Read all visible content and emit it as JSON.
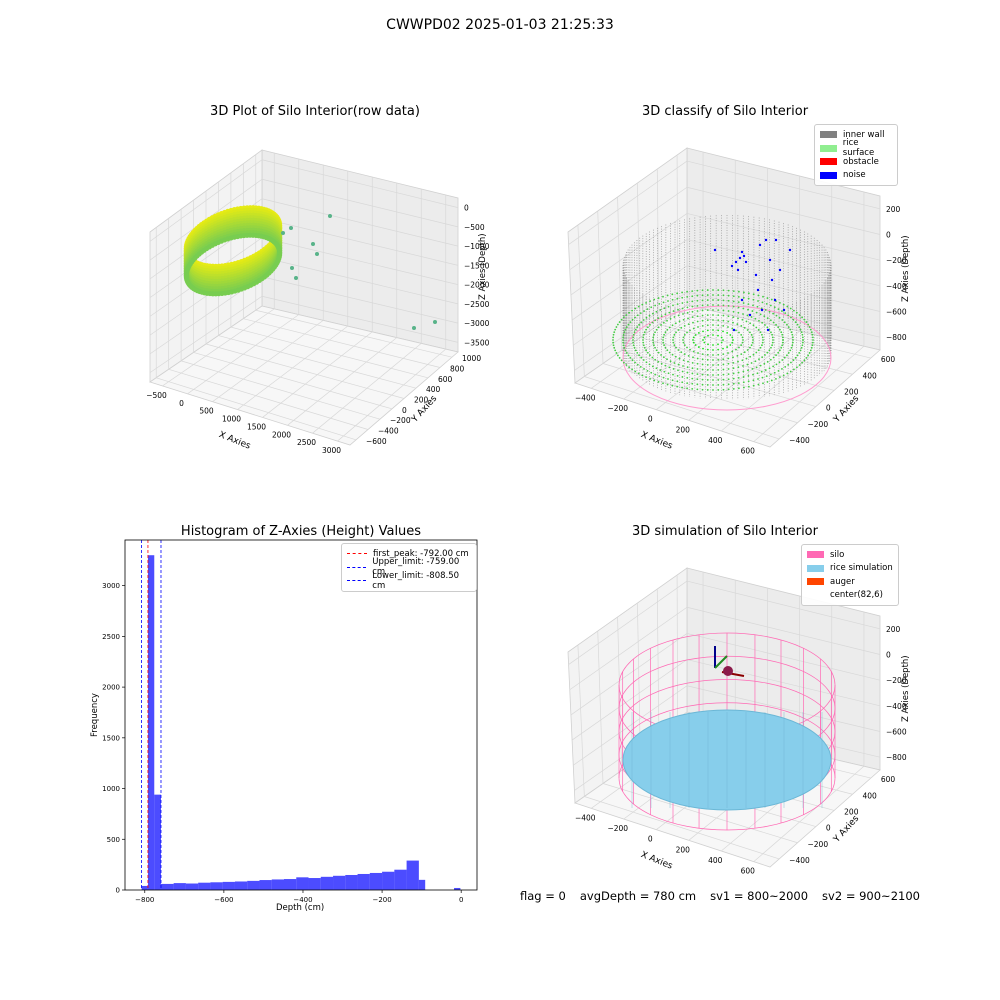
{
  "figure": {
    "suptitle": "CWWPD02 2025-01-03 21:25:33",
    "status": {
      "flag": "flag = 0",
      "avg_depth": "avgDepth = 780 cm",
      "sv1": "sv1 = 800~2000",
      "sv2": "sv2 = 900~2100"
    }
  },
  "chart_data": [
    {
      "type": "scatter",
      "projection": "3d",
      "title": "3D Plot of Silo Interior(row data)",
      "xlabel": "X Axies",
      "ylabel": "Y Axies",
      "zlabel": "Z Axies (Depth)",
      "x_ticks": [
        "−500",
        "0",
        "500",
        "1000",
        "1500",
        "2000",
        "2500",
        "3000"
      ],
      "y_ticks": [
        "−600",
        "−400",
        "−200",
        "0",
        "200",
        "400",
        "600",
        "800",
        "1000"
      ],
      "z_ticks": [
        "0",
        "−500",
        "−1000",
        "−1500",
        "−2000",
        "−2500",
        "−3000",
        "−3500"
      ],
      "xlim": [
        -600,
        3100
      ],
      "ylim": [
        -700,
        1100
      ],
      "zlim": [
        -3800,
        200
      ],
      "colormap": "viridis (yellow to green by depth)",
      "outlier_points": [
        {
          "x": 600,
          "y": 200,
          "z": -900
        },
        {
          "x": 800,
          "y": 200,
          "z": -1000
        },
        {
          "x": 1000,
          "y": 300,
          "z": -1200
        },
        {
          "x": 1500,
          "y": 500,
          "z": -2000
        },
        {
          "x": 2900,
          "y": 800,
          "z": -3200
        },
        {
          "x": 3000,
          "y": 900,
          "z": -3400
        }
      ]
    },
    {
      "type": "scatter",
      "projection": "3d",
      "title": "3D classify of Silo Interior",
      "xlabel": "X Axies",
      "ylabel": "Y Axies",
      "zlabel": "Z Axies (Depth)",
      "x_ticks": [
        "−400",
        "−200",
        "0",
        "200",
        "400",
        "600"
      ],
      "y_ticks": [
        "−400",
        "−200",
        "0",
        "200",
        "400",
        "600"
      ],
      "z_ticks": [
        "200",
        "0",
        "−200",
        "−400",
        "−600",
        "−800"
      ],
      "xlim": [
        -500,
        700
      ],
      "ylim": [
        -500,
        700
      ],
      "zlim": [
        -900,
        300
      ],
      "legend": [
        {
          "label": "inner wall",
          "color": "#808080"
        },
        {
          "label": "rice surface",
          "color": "#90ee90"
        },
        {
          "label": "obstacle",
          "color": "#ff0000"
        },
        {
          "label": "noise",
          "color": "#0000ff"
        }
      ],
      "legend_position": "top-right"
    },
    {
      "type": "bar",
      "title": "Histogram of Z-Axies (Height) Values",
      "xlabel": "Depth (cm)",
      "ylabel": "Frequency",
      "xlim": [
        -850,
        40
      ],
      "ylim": [
        0,
        3450
      ],
      "x_ticks": [
        -800,
        -600,
        -400,
        -200,
        0
      ],
      "y_ticks": [
        0,
        500,
        1000,
        1500,
        2000,
        2500,
        3000
      ],
      "bar_color": "#0000ff",
      "bar_alpha": 0.7,
      "bins": [
        {
          "x0": -808,
          "x1": -792,
          "count": 40
        },
        {
          "x0": -792,
          "x1": -776,
          "count": 3300
        },
        {
          "x0": -776,
          "x1": -759,
          "count": 940
        },
        {
          "x0": -759,
          "x1": -727,
          "count": 60
        },
        {
          "x0": -727,
          "x1": -696,
          "count": 68
        },
        {
          "x0": -696,
          "x1": -665,
          "count": 64
        },
        {
          "x0": -665,
          "x1": -634,
          "count": 72
        },
        {
          "x0": -634,
          "x1": -603,
          "count": 76
        },
        {
          "x0": -603,
          "x1": -572,
          "count": 80
        },
        {
          "x0": -572,
          "x1": -541,
          "count": 84
        },
        {
          "x0": -541,
          "x1": -510,
          "count": 90
        },
        {
          "x0": -510,
          "x1": -479,
          "count": 98
        },
        {
          "x0": -479,
          "x1": -448,
          "count": 104
        },
        {
          "x0": -448,
          "x1": -417,
          "count": 108
        },
        {
          "x0": -417,
          "x1": -386,
          "count": 125
        },
        {
          "x0": -386,
          "x1": -355,
          "count": 118
        },
        {
          "x0": -355,
          "x1": -324,
          "count": 130
        },
        {
          "x0": -324,
          "x1": -293,
          "count": 140
        },
        {
          "x0": -293,
          "x1": -262,
          "count": 148
        },
        {
          "x0": -262,
          "x1": -231,
          "count": 158
        },
        {
          "x0": -231,
          "x1": -200,
          "count": 168
        },
        {
          "x0": -200,
          "x1": -169,
          "count": 180
        },
        {
          "x0": -169,
          "x1": -138,
          "count": 200
        },
        {
          "x0": -138,
          "x1": -107,
          "count": 290
        },
        {
          "x0": -107,
          "x1": -91,
          "count": 100
        },
        {
          "x0": -18,
          "x1": -2,
          "count": 20
        }
      ],
      "vlines": [
        {
          "label": "first_peak: -792.00 cm",
          "x": -792,
          "color": "#ff0000"
        },
        {
          "label": "Upper_limit: -759.00 cm",
          "x": -759,
          "color": "#0000ff"
        },
        {
          "label": "Lower_limit: -808.50 cm",
          "x": -808.5,
          "color": "#0000ff"
        }
      ],
      "legend_position": "top-right"
    },
    {
      "type": "scatter",
      "projection": "3d",
      "title": "3D simulation of Silo Interior",
      "xlabel": "X Axies",
      "ylabel": "Y Axies",
      "zlabel": "Z Axies (Depth)",
      "x_ticks": [
        "−400",
        "−200",
        "0",
        "200",
        "400",
        "600"
      ],
      "y_ticks": [
        "−400",
        "−200",
        "0",
        "200",
        "400",
        "600"
      ],
      "z_ticks": [
        "200",
        "0",
        "−200",
        "−400",
        "−600",
        "−800"
      ],
      "xlim": [
        -500,
        700
      ],
      "ylim": [
        -500,
        700
      ],
      "zlim": [
        -900,
        300
      ],
      "legend": [
        {
          "label": "silo",
          "color": "#ff69b4"
        },
        {
          "label": "rice simulation",
          "color": "#87ceeb"
        },
        {
          "label": "auger",
          "color": "#ff4500"
        },
        {
          "label": "center(82,6)",
          "color": ""
        }
      ],
      "legend_position": "top-right"
    }
  ]
}
